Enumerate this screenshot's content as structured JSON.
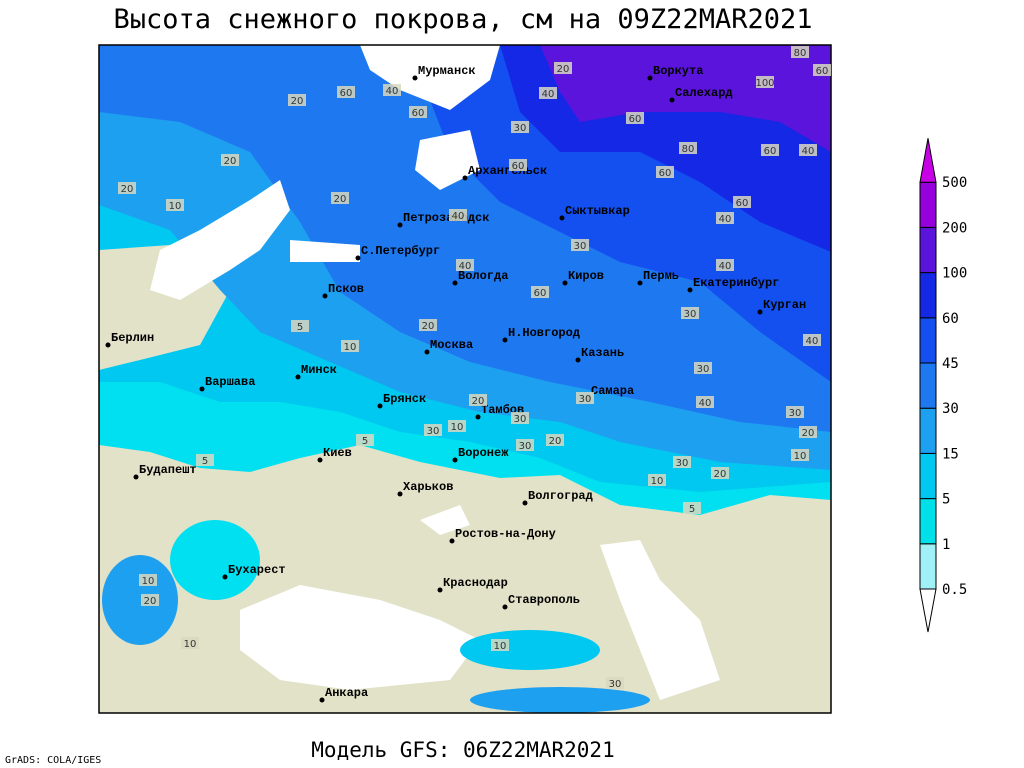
{
  "header": {
    "title": "Высота снежного покрова, см на 09Z22MAR2021"
  },
  "footer": {
    "model": "Модель GFS: 06Z22MAR2021",
    "credit": "GrADS: COLA/IGES"
  },
  "legend": {
    "levels": [
      0.5,
      1,
      5,
      15,
      30,
      45,
      60,
      100,
      200,
      500
    ],
    "colors": [
      "#ffffff",
      "#a0f0f8",
      "#00e0e8",
      "#00c8f0",
      "#1ea0f0",
      "#1e78f0",
      "#1450f0",
      "#1428e6",
      "#5a14dc",
      "#9600dc",
      "#c800e6"
    ]
  },
  "cities": [
    "Мурманск",
    "Воркута",
    "Салехард",
    "Архангельск",
    "Петрозаводск",
    "Сыктывкар",
    "С.Петербург",
    "Вологда",
    "Киров",
    "Пермь",
    "Екатеринбург",
    "Курган",
    "Псков",
    "Москва",
    "Н.Новгород",
    "Казань",
    "Берлин",
    "Варшава",
    "Минск",
    "Брянск",
    "Тамбов",
    "Самара",
    "Воронеж",
    "Киев",
    "Будапешт",
    "Харьков",
    "Волгоград",
    "Ростов-на-Дону",
    "Бухарест",
    "Краснодар",
    "Ставрополь",
    "Анкара"
  ],
  "contour_labels": [
    20,
    100,
    60,
    80,
    60,
    80,
    60,
    40,
    60,
    40,
    60,
    60,
    30,
    40,
    60,
    40,
    20,
    60,
    20,
    20,
    10,
    20,
    40,
    40,
    30,
    40,
    30,
    40,
    60,
    20,
    5,
    10,
    30,
    40,
    30,
    20,
    10,
    30,
    20,
    10,
    5,
    30,
    20,
    30,
    30,
    20,
    30,
    10,
    5,
    5,
    20,
    10,
    10,
    10,
    30
  ]
}
